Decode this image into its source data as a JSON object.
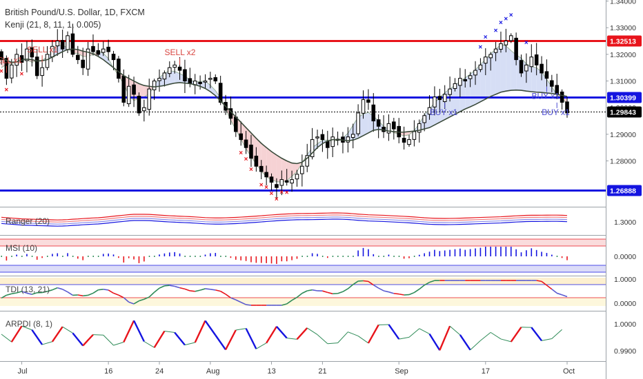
{
  "title": "British Pound/U.S. Dollar, 1D, FXCM",
  "indicator_label": "Kenji (21, 8, 11, 1, 0.005)",
  "signals": [
    {
      "label": "SELL x1",
      "idx": 1,
      "pos": "above"
    },
    {
      "label": "SELL x1",
      "idx": 8,
      "pos": "above"
    },
    {
      "label": "SELL x2",
      "idx": 35,
      "pos": "above"
    },
    {
      "label": "BUY x1",
      "idx": 87,
      "pos": "below"
    },
    {
      "label": "BUY x1",
      "idx": 109,
      "pos": "below"
    },
    {
      "label": "BUY x1",
      "idx": 107,
      "pos": "below2"
    }
  ],
  "x_ticks": [
    {
      "label": "Jul",
      "idx": 4
    },
    {
      "label": "16",
      "idx": 21
    },
    {
      "label": "24",
      "idx": 31
    },
    {
      "label": "Aug",
      "idx": 41
    },
    {
      "label": "13",
      "idx": 53
    },
    {
      "label": "21",
      "idx": 63
    },
    {
      "label": "Sep",
      "idx": 78
    },
    {
      "label": "17",
      "idx": 95
    },
    {
      "label": "Oct",
      "idx": 111
    }
  ],
  "price_axis_ticks": [
    "1.34000",
    "1.33000",
    "1.32000",
    "1.31000",
    "1.30000",
    "1.29000",
    "1.28000"
  ],
  "panes": {
    "ranger": {
      "label": "Ranger (20)",
      "ticks": [
        "1.3000"
      ]
    },
    "msi": {
      "label": "MSI (10)",
      "ticks": [
        "0.0000"
      ]
    },
    "tdi": {
      "label": "TDI (13, 21)",
      "ticks": [
        "1.0000",
        "0.0000"
      ]
    },
    "arpdi": {
      "label": "ARPDI (8, 1)",
      "ticks": [
        "1.0000",
        "0.9900"
      ]
    }
  },
  "levels": [
    {
      "label": "1.32513",
      "value": 1.32513,
      "color": "#e8141b"
    },
    {
      "label": "1.30399",
      "value": 1.30399,
      "color": "#1414e0"
    },
    {
      "label": "1.29843",
      "value": 1.29843,
      "color": "#000000"
    },
    {
      "label": "1.26888",
      "value": 1.26888,
      "color": "#1414e0"
    }
  ],
  "chart_data": {
    "type": "candlestick",
    "title": "British Pound/U.S. Dollar, 1D, FXCM",
    "y_range": [
      1.2628,
      1.3404
    ],
    "close_series": [
      1.318,
      1.311,
      1.316,
      1.32,
      1.317,
      1.322,
      1.319,
      1.312,
      1.315,
      1.32,
      1.323,
      1.325,
      1.322,
      1.327,
      1.32,
      1.318,
      1.315,
      1.322,
      1.321,
      1.32,
      1.322,
      1.321,
      1.318,
      1.311,
      1.302,
      1.308,
      1.305,
      1.298,
      1.3,
      1.307,
      1.31,
      1.311,
      1.313,
      1.315,
      1.316,
      1.314,
      1.31,
      1.309,
      1.31,
      1.309,
      1.31,
      1.311,
      1.31,
      1.302,
      1.299,
      1.296,
      1.291,
      1.288,
      1.285,
      1.281,
      1.278,
      1.276,
      1.274,
      1.272,
      1.27,
      1.273,
      1.272,
      1.273,
      1.275,
      1.278,
      1.282,
      1.288,
      1.289,
      1.288,
      1.285,
      1.289,
      1.288,
      1.287,
      1.289,
      1.29,
      1.298,
      1.303,
      1.302,
      1.295,
      1.293,
      1.291,
      1.294,
      1.292,
      1.289,
      1.287,
      1.288,
      1.291,
      1.294,
      1.297,
      1.3,
      1.304,
      1.303,
      1.305,
      1.307,
      1.309,
      1.311,
      1.31,
      1.312,
      1.314,
      1.316,
      1.319,
      1.32,
      1.322,
      1.324,
      1.325,
      1.327,
      1.318,
      1.313,
      1.316,
      1.319,
      1.316,
      1.313,
      1.311,
      1.308,
      1.305,
      1.302,
      1.298
    ],
    "kenji_line": [
      1.3185,
      1.3178,
      1.317,
      1.3172,
      1.3178,
      1.3182,
      1.318,
      1.3175,
      1.3176,
      1.318,
      1.319,
      1.32,
      1.321,
      1.3218,
      1.322,
      1.3218,
      1.3212,
      1.3208,
      1.3202,
      1.3192,
      1.318,
      1.3165,
      1.315,
      1.3135,
      1.312,
      1.311,
      1.31,
      1.309,
      1.3083,
      1.308,
      1.3078,
      1.308,
      1.3083,
      1.3088,
      1.3092,
      1.3094,
      1.3092,
      1.309,
      1.3086,
      1.308,
      1.3072,
      1.306,
      1.3045,
      1.3025,
      1.3005,
      1.2985,
      1.2965,
      1.2945,
      1.2925,
      1.2905,
      1.2885,
      1.2866,
      1.285,
      1.2835,
      1.2822,
      1.281,
      1.28,
      1.2792,
      1.279,
      1.2795,
      1.281,
      1.283,
      1.285,
      1.2865,
      1.2875,
      1.288,
      1.288,
      1.2878,
      1.2876,
      1.2878,
      1.2885,
      1.2895,
      1.2905,
      1.2915,
      1.2918,
      1.2916,
      1.2912,
      1.291,
      1.2908,
      1.2908,
      1.291,
      1.2912,
      1.2915,
      1.292,
      1.2925,
      1.2935,
      1.2945,
      1.2955,
      1.2965,
      1.2975,
      1.2985,
      1.2995,
      1.3003,
      1.3012,
      1.3022,
      1.3032,
      1.3042,
      1.305,
      1.3058,
      1.3062,
      1.3065,
      1.3066,
      1.3065,
      1.3062,
      1.306,
      1.3058,
      1.3057,
      1.3055,
      1.3053,
      1.305,
      1.3046,
      1.3042
    ],
    "horizontal_levels": [
      1.32513,
      1.30399,
      1.29843,
      1.26888
    ],
    "x_axis_labels": [
      "Jul",
      "16",
      "24",
      "Aug",
      "13",
      "21",
      "Sep",
      "17",
      "Oct"
    ],
    "y_axis_labels": [
      "1.34000",
      "1.33000",
      "1.32000",
      "1.31000",
      "1.30000",
      "1.29000",
      "1.28000"
    ],
    "signals": [
      "SELL x1",
      "SELL x1",
      "SELL x2",
      "BUY x1",
      "BUY x1",
      "BUY x1"
    ]
  },
  "colors": {
    "sell": "#e8141b",
    "buy": "#1414e0",
    "candle_up": "#ffffff",
    "candle_down": "#000000",
    "cloud_bear": "#f6d2d4",
    "cloud_bull": "#d6def5",
    "kenji_line": "#3a4a3a",
    "label_buy": "#4a4ad0",
    "label_sell": "#d8443f"
  }
}
